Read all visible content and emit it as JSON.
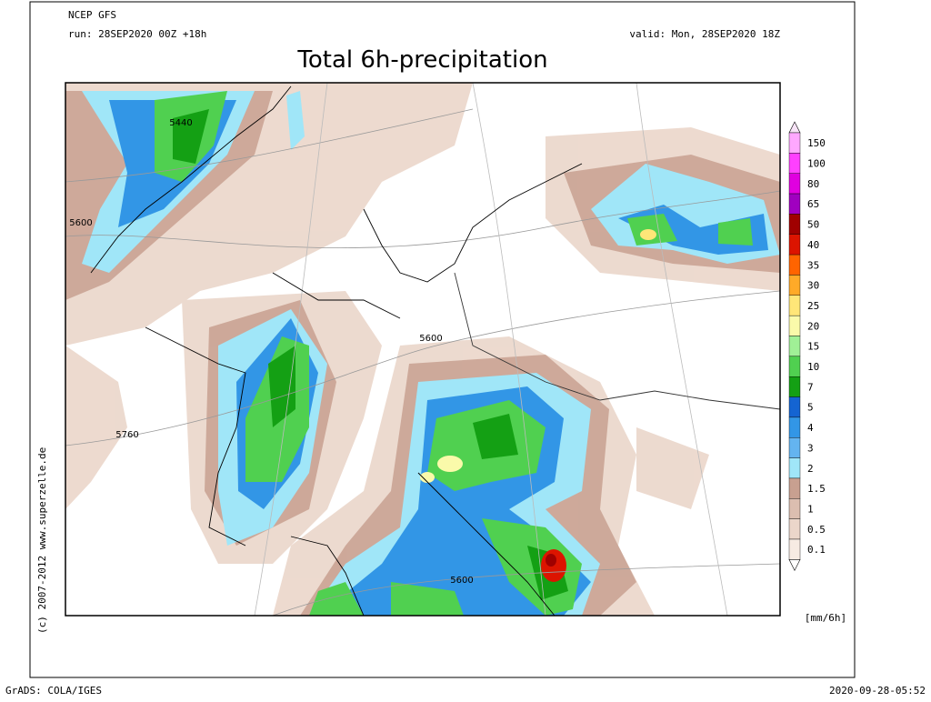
{
  "header": {
    "model": "NCEP GFS",
    "run": "run: 28SEP2020 00Z +18h",
    "valid": "valid: Mon, 28SEP2020 18Z",
    "title": "Total 6h-precipitation"
  },
  "contour_labels": [
    "5440",
    "5600",
    "5600",
    "5760",
    "5600"
  ],
  "legend": {
    "unit": "[mm/6h]",
    "entries": [
      {
        "label": "150",
        "color": "#ffa8ff"
      },
      {
        "label": "100",
        "color": "#ff40ff"
      },
      {
        "label": "80",
        "color": "#e000e0"
      },
      {
        "label": "65",
        "color": "#a000c0"
      },
      {
        "label": "50",
        "color": "#a00000"
      },
      {
        "label": "40",
        "color": "#dc1400"
      },
      {
        "label": "35",
        "color": "#ff6400"
      },
      {
        "label": "30",
        "color": "#ffaa28"
      },
      {
        "label": "25",
        "color": "#ffe678"
      },
      {
        "label": "20",
        "color": "#fafaaa"
      },
      {
        "label": "15",
        "color": "#a0f096"
      },
      {
        "label": "10",
        "color": "#50d050"
      },
      {
        "label": "7",
        "color": "#14a014"
      },
      {
        "label": "5",
        "color": "#1464d2"
      },
      {
        "label": "4",
        "color": "#3296e6"
      },
      {
        "label": "3",
        "color": "#64b4f0"
      },
      {
        "label": "2",
        "color": "#a0e6f8"
      },
      {
        "label": "1.5",
        "color": "#c8a090"
      },
      {
        "label": "1",
        "color": "#dcbeb0"
      },
      {
        "label": "0.5",
        "color": "#ebd6ca"
      },
      {
        "label": "0.1",
        "color": "#f7ebe3"
      }
    ]
  },
  "credit": "(c) 2007-2012 www.superzelle.de",
  "footer": {
    "left": "GrADS: COLA/IGES",
    "right": "2020-09-28-05:52"
  }
}
